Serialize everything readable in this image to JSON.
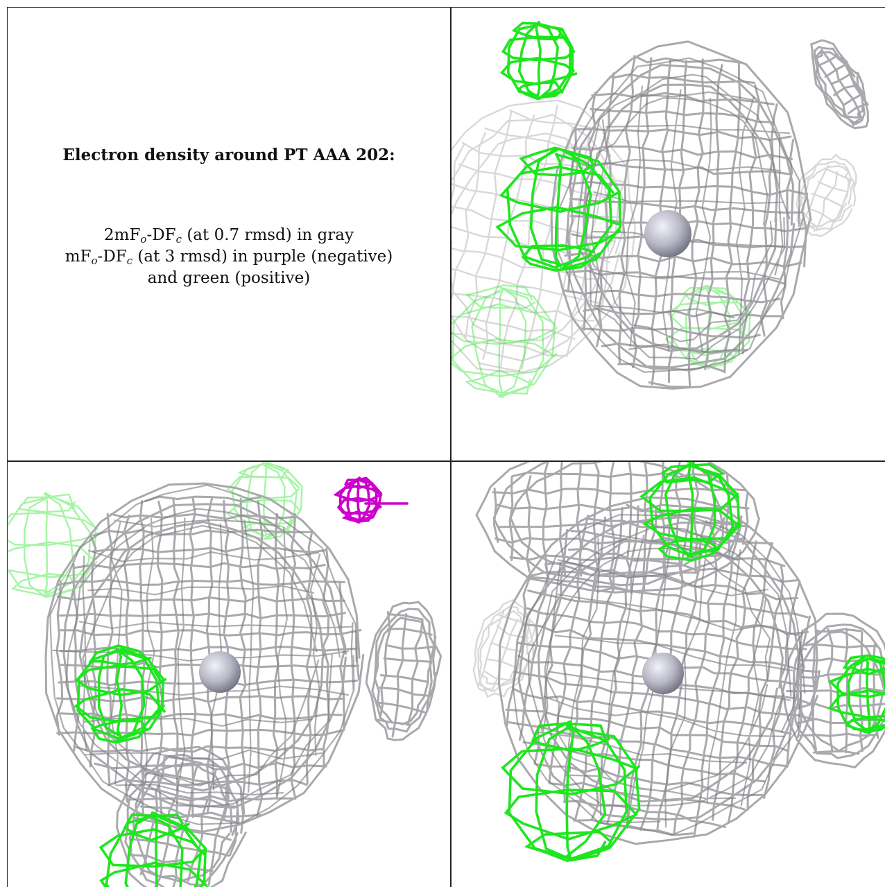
{
  "title": "Electron density around PT AAA 202:",
  "legend": {
    "line1": {
      "a": "2mF",
      "a_sub": "o",
      "b": "-DF",
      "b_sub": "c",
      "rest": " (at 0.7 rmsd) in gray"
    },
    "line2": {
      "a": "mF",
      "a_sub": "o",
      "b": "-DF",
      "b_sub": "c",
      "rest": " (at 3 rmsd) in purple (negative)"
    },
    "line3": "and green (positive)"
  },
  "colors": {
    "gray_mesh": "#a9a9ad",
    "gray_dark": "#7a7a7e",
    "green_mesh": "#1ee61e",
    "purple_mesh": "#cc00cc",
    "atom": "#b8b8c6"
  },
  "panels": [
    {
      "id": "view-1",
      "content": "mesh",
      "atom": "pt-atom"
    },
    {
      "id": "view-2",
      "content": "mesh",
      "atom": "pt-atom"
    },
    {
      "id": "view-3",
      "content": "mesh",
      "atom": "pt-atom"
    }
  ]
}
